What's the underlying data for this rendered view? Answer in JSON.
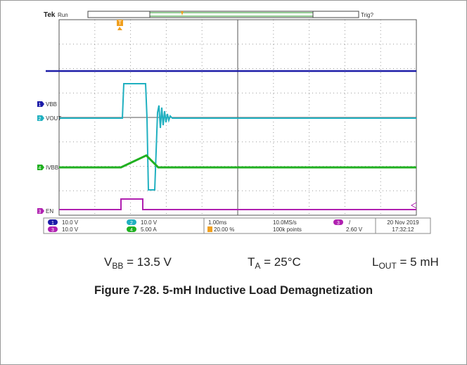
{
  "scope": {
    "brand": "Tek",
    "status": "Run",
    "trigger_status": "Trig?",
    "trigger_marker": "T",
    "channel_labels": [
      {
        "number": "1",
        "label": "VBB"
      },
      {
        "number": "2",
        "label": "VOUT"
      },
      {
        "number": "4",
        "label": "IVBB"
      },
      {
        "number": "3",
        "label": "EN"
      }
    ],
    "readouts": {
      "ch1": {
        "number": "1",
        "scale": "10.0 V"
      },
      "ch2": {
        "number": "2",
        "scale": "10.0 V"
      },
      "ch3": {
        "number": "3",
        "scale": "10.0 V"
      },
      "ch4": {
        "number": "4",
        "scale": "5.00 A"
      },
      "timebase": "1.00ms",
      "trigger_position": "20.00 %",
      "sample_rate": "10.0MS/s",
      "record_length": "100k points",
      "trigger_source": "3",
      "trigger_slope": "/",
      "trigger_level": "2.60 V",
      "date": "20 Nov 2019",
      "time": "17:32:12"
    }
  },
  "conditions": [
    {
      "symbol": "V",
      "subscript": "BB",
      "rest": " = 13.5 V"
    },
    {
      "symbol": "T",
      "subscript": "A",
      "rest": " = 25°C"
    },
    {
      "symbol": "L",
      "subscript": "OUT",
      "rest": " = 5 mH"
    }
  ],
  "caption": "Figure 7-28. 5-mH Inductive Load Demagnetization"
}
